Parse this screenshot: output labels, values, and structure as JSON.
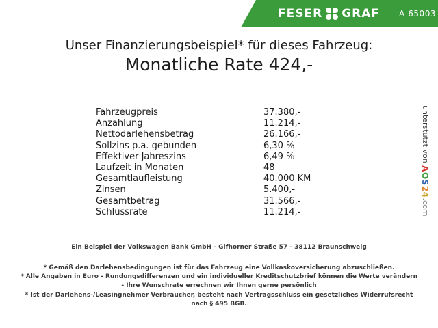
{
  "header": {
    "banner_color": "#3a9c3a",
    "logo_left": "FESER",
    "logo_right": "GRAF",
    "logo_icon": "clover-x-icon",
    "dealer_code": "A-65003"
  },
  "title": {
    "line1": "Unser Finanzierungsbeispiel* für dieses Fahrzeug:",
    "line2": "Monatliche Rate 424,-"
  },
  "finance_table": {
    "rows": [
      {
        "label": "Fahrzeugpreis",
        "value": "37.380,-"
      },
      {
        "label": "Anzahlung",
        "value": "11.214,-"
      },
      {
        "label": "Nettodarlehensbetrag",
        "value": "26.166,-"
      },
      {
        "label": "Sollzins p.a. gebunden",
        "value": "6,30 %"
      },
      {
        "label": "Effektiver Jahreszins",
        "value": "6,49 %"
      },
      {
        "label": "Laufzeit in Monaten",
        "value": "48"
      },
      {
        "label": "Gesamtlaufleistung",
        "value": "40.000 KM"
      },
      {
        "label": "Zinsen",
        "value": "5.400,-"
      },
      {
        "label": "Gesamtbetrag",
        "value": "31.566,-"
      },
      {
        "label": "Schlussrate",
        "value": "11.214,-"
      }
    ]
  },
  "side_note": {
    "prefix": "unterstützt von ",
    "brand_letters": [
      {
        "char": "A",
        "color": "#d6342c"
      },
      {
        "char": "O",
        "color": "#3f9d3a"
      },
      {
        "char": "S",
        "color": "#2d64ad"
      },
      {
        "char": "2",
        "color": "#d9822b"
      },
      {
        "char": "4",
        "color": "#c9a227"
      }
    ],
    "suffix": ".com"
  },
  "footer": {
    "bank_line": "Ein Beispiel der Volkswagen Bank GmbH - Gifhorner Straße 57 - 38112 Braunschweig",
    "disclaimers": [
      "* Gemäß den Darlehensbedingungen ist für das Fahrzeug eine Vollkaskoversicherung abzuschließen.",
      "* Alle Angaben in Euro - Rundungsdifferenzen und ein individueller Kreditschutzbrief können die Werte verändern",
      "- Ihre Wunschrate errechnen wir Ihnen gerne persönlich",
      "* Ist der Darlehens-/Leasingnehmer Verbraucher, besteht nach Vertragsschluss ein gesetzliches Widerrufsrecht",
      "nach § 495 BGB."
    ]
  }
}
